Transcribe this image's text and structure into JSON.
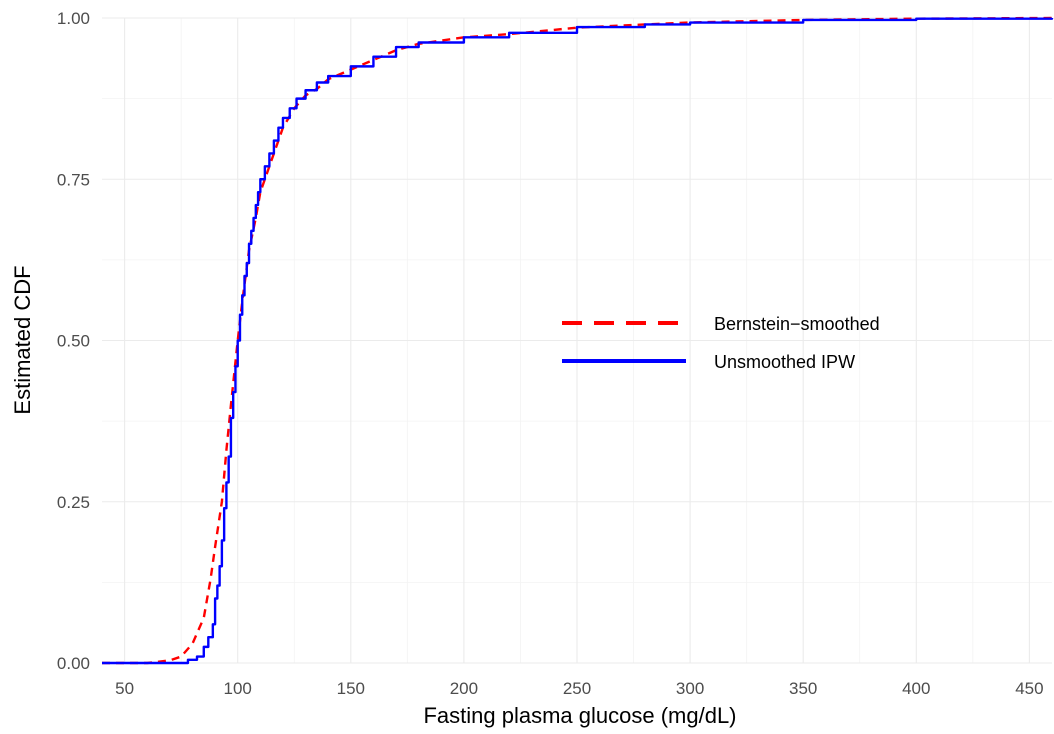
{
  "chart_data": {
    "type": "line",
    "xlabel": "Fasting plasma glucose (mg/dL)",
    "ylabel": "Estimated CDF",
    "xlim": [
      40,
      460
    ],
    "ylim": [
      0,
      1
    ],
    "x_ticks": [
      50,
      100,
      150,
      200,
      250,
      300,
      350,
      400,
      450
    ],
    "x_tick_labels": [
      "50",
      "100",
      "150",
      "200",
      "250",
      "300",
      "350",
      "400",
      "450"
    ],
    "y_ticks": [
      0,
      0.25,
      0.5,
      0.75,
      1.0
    ],
    "y_tick_labels": [
      "0.00",
      "0.25",
      "0.50",
      "0.75",
      "1.00"
    ],
    "grid": true,
    "legend": {
      "position": "right-center",
      "entries": [
        {
          "label": "Bernstein−smoothed",
          "color": "#ff0000",
          "style": "dashed"
        },
        {
          "label": "Unsmoothed IPW",
          "color": "#0000ff",
          "style": "solid"
        }
      ]
    },
    "series": [
      {
        "name": "Bernstein−smoothed",
        "color": "#ff0000",
        "style": "dashed",
        "x": [
          40,
          60,
          70,
          75,
          80,
          85,
          88,
          90,
          93,
          95,
          97,
          100,
          102,
          105,
          108,
          110,
          113,
          115,
          118,
          120,
          125,
          130,
          135,
          140,
          150,
          160,
          170,
          180,
          200,
          220,
          250,
          280,
          300,
          350,
          400,
          460
        ],
        "y": [
          0.0,
          0.0,
          0.004,
          0.01,
          0.03,
          0.07,
          0.13,
          0.18,
          0.25,
          0.33,
          0.4,
          0.5,
          0.56,
          0.64,
          0.69,
          0.73,
          0.76,
          0.78,
          0.81,
          0.83,
          0.86,
          0.88,
          0.89,
          0.905,
          0.92,
          0.935,
          0.95,
          0.96,
          0.97,
          0.975,
          0.985,
          0.99,
          0.993,
          0.997,
          0.999,
          1.0
        ]
      },
      {
        "name": "Unsmoothed IPW",
        "color": "#0000ff",
        "style": "solid",
        "x": [
          40,
          70,
          78,
          82,
          85,
          87,
          89,
          90,
          91,
          92,
          93,
          94,
          95,
          96,
          97,
          98,
          99,
          100,
          101,
          102,
          103,
          104,
          105,
          106,
          107,
          108,
          109,
          110,
          112,
          114,
          116,
          118,
          120,
          123,
          126,
          130,
          135,
          140,
          150,
          160,
          170,
          180,
          200,
          220,
          250,
          280,
          300,
          350,
          400,
          460
        ],
        "y": [
          0.0,
          0.0,
          0.005,
          0.01,
          0.025,
          0.04,
          0.06,
          0.1,
          0.12,
          0.15,
          0.19,
          0.24,
          0.28,
          0.32,
          0.38,
          0.42,
          0.46,
          0.5,
          0.54,
          0.57,
          0.6,
          0.62,
          0.65,
          0.67,
          0.69,
          0.71,
          0.73,
          0.75,
          0.77,
          0.79,
          0.81,
          0.83,
          0.845,
          0.86,
          0.875,
          0.888,
          0.9,
          0.91,
          0.925,
          0.94,
          0.955,
          0.962,
          0.97,
          0.977,
          0.986,
          0.99,
          0.993,
          0.997,
          0.999,
          1.0
        ]
      }
    ]
  }
}
